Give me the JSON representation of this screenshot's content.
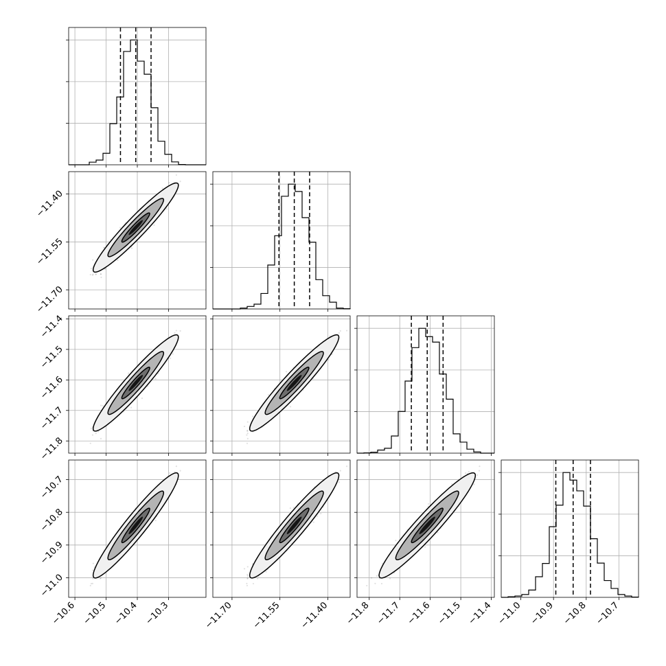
{
  "chart_data": {
    "type": "corner",
    "n_params": 4,
    "grid": true,
    "colors": {
      "line": "#000000",
      "grid": "#b0b0b0",
      "points": "#000000"
    },
    "params": [
      {
        "mean": -10.405,
        "sd": 0.045,
        "range": [
          -10.62,
          -10.18
        ],
        "ticks": [
          -10.6,
          -10.5,
          -10.4,
          -10.3
        ],
        "tick_labels": [
          "−10.6",
          "−10.5",
          "−10.4",
          "−10.3"
        ],
        "quantiles": [
          -10.454,
          -10.405,
          -10.356
        ]
      },
      {
        "mean": -11.505,
        "sd": 0.046,
        "range": [
          -11.76,
          -11.33
        ],
        "ticks": [
          -11.7,
          -11.55,
          -11.4
        ],
        "tick_labels": [
          "−11.70",
          "−11.55",
          "−11.40"
        ],
        "quantiles": [
          -11.553,
          -11.505,
          -11.457
        ]
      },
      {
        "mean": -11.61,
        "sd": 0.052,
        "range": [
          -11.84,
          -11.39
        ],
        "ticks": [
          -11.8,
          -11.7,
          -11.6,
          -11.5,
          -11.4
        ],
        "tick_labels": [
          "−11.8",
          "−11.7",
          "−11.6",
          "−11.5",
          "−11.4"
        ],
        "quantiles": [
          -11.662,
          -11.61,
          -11.558
        ]
      },
      {
        "mean": -10.84,
        "sd": 0.053,
        "range": [
          -11.06,
          -10.64
        ],
        "ticks": [
          -11.0,
          -10.9,
          -10.8,
          -10.7
        ],
        "tick_labels": [
          "−11.0",
          "−10.9",
          "−10.8",
          "−10.7"
        ],
        "quantiles": [
          -10.893,
          -10.84,
          -10.787
        ]
      }
    ],
    "correlation": 0.95,
    "contour_levels": [
      0.39,
      0.86,
      0.99
    ],
    "contour_fill_colors": [
      "#f0f0f0",
      "#b4b4b4",
      "#6e6e6e",
      "#141414"
    ],
    "histogram_bins": 20,
    "n_samples": 2500,
    "seed": 1234
  }
}
